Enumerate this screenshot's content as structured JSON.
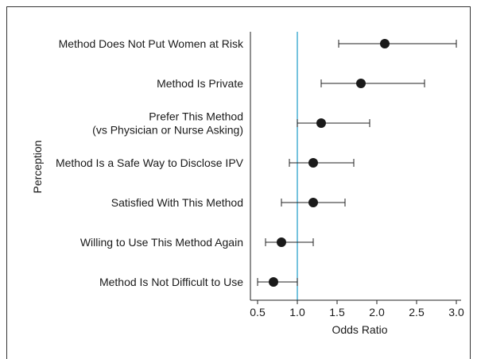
{
  "chart_data": {
    "type": "forest",
    "title": "",
    "xlabel": "Odds Ratio",
    "ylabel": "Perception",
    "xlim": [
      0.4,
      3.0
    ],
    "xticks": [
      0.5,
      1.0,
      1.5,
      2.0,
      2.5,
      3.0
    ],
    "xtick_labels": [
      "0.5",
      "1.0",
      "1.5",
      "2.0",
      "2.5",
      "3.0"
    ],
    "reference_line": {
      "x": 1.0,
      "color": "#1a9bc7"
    },
    "point_color": "#1a1a1a",
    "grid": false,
    "legend": "none",
    "items": [
      {
        "label": [
          "Method Does Not Put Women at Risk"
        ],
        "or": 2.1,
        "lo": 1.52,
        "hi": 3.0
      },
      {
        "label": [
          "Method Is Private"
        ],
        "or": 1.8,
        "lo": 1.3,
        "hi": 2.6
      },
      {
        "label": [
          "Prefer This Method",
          "(vs Physician or Nurse Asking)"
        ],
        "or": 1.3,
        "lo": 1.0,
        "hi": 1.91
      },
      {
        "label": [
          "Method Is a Safe Way to Disclose IPV"
        ],
        "or": 1.2,
        "lo": 0.9,
        "hi": 1.71
      },
      {
        "label": [
          "Satisfied With This Method"
        ],
        "or": 1.2,
        "lo": 0.8,
        "hi": 1.6
      },
      {
        "label": [
          "Willing to Use This Method Again"
        ],
        "or": 0.8,
        "lo": 0.6,
        "hi": 1.2
      },
      {
        "label": [
          "Method Is Not Difficult to Use"
        ],
        "or": 0.7,
        "lo": 0.5,
        "hi": 1.0
      }
    ]
  }
}
